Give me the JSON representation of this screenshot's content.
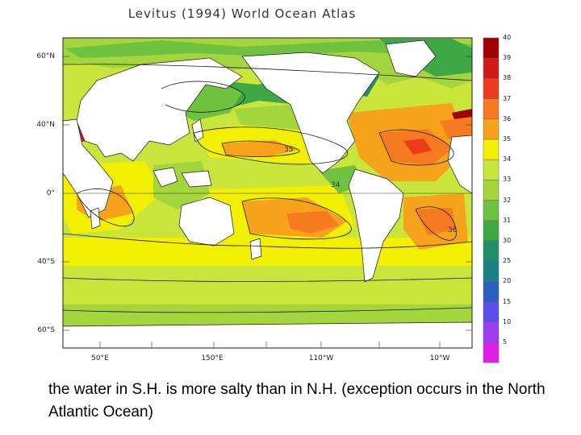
{
  "title": "Levitus (1994) World Ocean Atlas",
  "latitude_labels": [
    "60°N",
    "40°N",
    "0°",
    "40°S",
    "60°S"
  ],
  "longitude_labels": [
    "50°E",
    "150°E",
    "110°W",
    "10°W"
  ],
  "colorbar": {
    "labels": [
      "40",
      "39",
      "38",
      "37",
      "36",
      "35",
      "34",
      "33",
      "32",
      "31",
      "30",
      "25",
      "20",
      "15",
      "10",
      "5"
    ],
    "colors": [
      "#a00000",
      "#d01818",
      "#ee3b1c",
      "#f57a20",
      "#f6a21a",
      "#f2f000",
      "#c9e43a",
      "#a2d63c",
      "#6fc23f",
      "#3da844",
      "#1f8f6a",
      "#1b7f86",
      "#2a5fbf",
      "#5a4fe8",
      "#9c3df0",
      "#e020e8"
    ]
  },
  "map_colors": {
    "land": "#ffffff",
    "ocean_35": "#f2f000",
    "ocean_36": "#f6a21a",
    "ocean_37": "#f57a20",
    "ocean_34": "#c9e43a",
    "ocean_33": "#a2d63c",
    "ocean_32": "#6fc23f",
    "ocean_31": "#3da844",
    "ocean_30": "#1f8f6a",
    "ocean_38": "#ee3b1c",
    "ocean_39": "#d01818",
    "ocean_40": "#a00000",
    "contour": "#1a1a1a"
  },
  "contour_labels": [
    "35",
    "34",
    "36"
  ],
  "caption": "the water in S.H. is more salty than in N.H. (exception occurs in the North Atlantic Ocean)"
}
